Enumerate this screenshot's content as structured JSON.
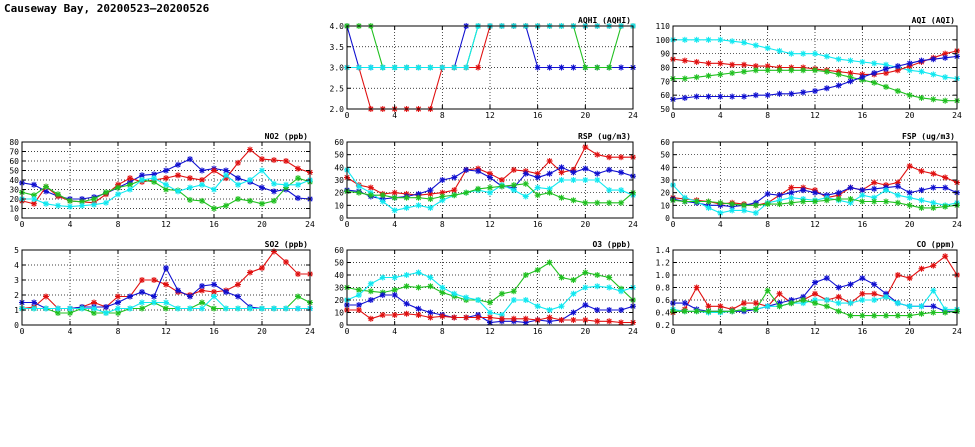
{
  "page": {
    "title": "Causeway Bay, 20200523–20200526"
  },
  "series_colors": {
    "blue": "#1010d0",
    "red": "#e01010",
    "green": "#20c020",
    "cyan": "#10e8f0"
  },
  "chart_data": [
    {
      "id": "aqhi",
      "type": "line",
      "title": "AQHI (AQHI)",
      "xlim": [
        0,
        24
      ],
      "xticks": [
        0,
        4,
        8,
        12,
        16,
        20,
        24
      ],
      "ylim": [
        2,
        4
      ],
      "yticks": [
        "2.0",
        "2.5",
        "3.0",
        "3.5",
        "4.0"
      ],
      "grid": true,
      "series": [
        {
          "color": "blue",
          "values": [
            4,
            3,
            3,
            3,
            3,
            3,
            3,
            3,
            3,
            3,
            4,
            4,
            4,
            4,
            4,
            4,
            3,
            3,
            3,
            3,
            3,
            3,
            3,
            3,
            3
          ]
        },
        {
          "color": "green",
          "values": [
            4,
            4,
            4,
            3,
            3,
            3,
            3,
            3,
            3,
            3,
            3,
            4,
            4,
            4,
            4,
            4,
            4,
            4,
            4,
            4,
            3,
            3,
            3,
            4,
            4
          ]
        },
        {
          "color": "red",
          "values": [
            3,
            3,
            2,
            2,
            2,
            2,
            2,
            2,
            3,
            3,
            3,
            3,
            4,
            4,
            4,
            4,
            4,
            4,
            4,
            4,
            4,
            4,
            4,
            4,
            4
          ]
        },
        {
          "color": "cyan",
          "values": [
            3,
            3,
            3,
            3,
            3,
            3,
            3,
            3,
            3,
            3,
            3,
            4,
            4,
            4,
            4,
            4,
            4,
            4,
            4,
            4,
            4,
            4,
            4,
            4,
            4
          ]
        }
      ]
    },
    {
      "id": "aqi",
      "type": "line",
      "title": "AQI (AQI)",
      "xlim": [
        0,
        24
      ],
      "xticks": [
        0,
        4,
        8,
        12,
        16,
        20,
        24
      ],
      "ylim": [
        50,
        110
      ],
      "yticks": [
        "50",
        "60",
        "70",
        "80",
        "90",
        "100",
        "110"
      ],
      "grid": true,
      "series": [
        {
          "color": "cyan",
          "values": [
            100,
            100,
            100,
            100,
            100,
            99,
            98,
            96,
            94,
            92,
            90,
            90,
            90,
            88,
            86,
            85,
            84,
            83,
            82,
            80,
            78,
            77,
            75,
            73,
            72
          ]
        },
        {
          "color": "red",
          "values": [
            86,
            85,
            84,
            83,
            83,
            82,
            82,
            81,
            81,
            80,
            80,
            80,
            79,
            78,
            77,
            76,
            75,
            75,
            76,
            78,
            81,
            84,
            87,
            90,
            92
          ]
        },
        {
          "color": "green",
          "values": [
            72,
            72,
            73,
            74,
            75,
            76,
            77,
            78,
            78,
            78,
            78,
            78,
            78,
            77,
            75,
            73,
            71,
            69,
            66,
            63,
            60,
            58,
            57,
            56,
            56
          ]
        },
        {
          "color": "blue",
          "values": [
            57,
            58,
            59,
            59,
            59,
            59,
            59,
            60,
            60,
            61,
            61,
            62,
            63,
            65,
            67,
            70,
            73,
            76,
            79,
            81,
            83,
            85,
            86,
            87,
            88
          ]
        }
      ]
    },
    {
      "id": "no2",
      "type": "line",
      "title": "NO2 (ppb)",
      "xlim": [
        0,
        24
      ],
      "xticks": [
        0,
        4,
        8,
        12,
        16,
        20,
        24
      ],
      "ylim": [
        0,
        80
      ],
      "yticks": [
        "0",
        "10",
        "20",
        "30",
        "40",
        "50",
        "60",
        "70",
        "80"
      ],
      "grid": true,
      "series": [
        {
          "color": "blue",
          "values": [
            37,
            35,
            28,
            23,
            20,
            20,
            22,
            26,
            32,
            38,
            45,
            46,
            50,
            56,
            62,
            50,
            52,
            50,
            42,
            38,
            32,
            28,
            30,
            21,
            20
          ]
        },
        {
          "color": "red",
          "values": [
            18,
            15,
            33,
            23,
            18,
            17,
            16,
            25,
            35,
            42,
            38,
            40,
            42,
            45,
            42,
            40,
            50,
            42,
            58,
            72,
            62,
            61,
            60,
            52,
            48
          ]
        },
        {
          "color": "green",
          "values": [
            27,
            24,
            33,
            25,
            18,
            17,
            20,
            27,
            32,
            35,
            40,
            38,
            30,
            29,
            19,
            18,
            10,
            13,
            20,
            18,
            15,
            18,
            32,
            42,
            38
          ]
        },
        {
          "color": "cyan",
          "values": [
            20,
            20,
            15,
            13,
            12,
            13,
            14,
            16,
            25,
            30,
            40,
            42,
            35,
            28,
            32,
            35,
            30,
            45,
            35,
            40,
            50,
            36,
            35,
            35,
            40
          ]
        }
      ]
    },
    {
      "id": "rsp",
      "type": "line",
      "title": "RSP (ug/m3)",
      "xlim": [
        0,
        24
      ],
      "xticks": [
        0,
        4,
        8,
        12,
        16,
        20,
        24
      ],
      "ylim": [
        0,
        60
      ],
      "yticks": [
        "0",
        "10",
        "20",
        "30",
        "40",
        "50",
        "60"
      ],
      "grid": true,
      "series": [
        {
          "color": "red",
          "values": [
            32,
            26,
            24,
            19,
            20,
            19,
            18,
            19,
            20,
            22,
            38,
            39,
            35,
            30,
            38,
            37,
            35,
            45,
            36,
            38,
            56,
            50,
            48,
            48,
            48
          ]
        },
        {
          "color": "blue",
          "values": [
            22,
            21,
            17,
            15,
            16,
            17,
            19,
            22,
            30,
            32,
            38,
            37,
            32,
            25,
            24,
            35,
            32,
            35,
            40,
            36,
            39,
            35,
            38,
            36,
            33
          ]
        },
        {
          "color": "cyan",
          "values": [
            38,
            25,
            20,
            13,
            6,
            8,
            10,
            8,
            14,
            18,
            20,
            22,
            20,
            26,
            22,
            17,
            24,
            23,
            30,
            30,
            30,
            30,
            22,
            22,
            18
          ]
        },
        {
          "color": "green",
          "values": [
            21,
            20,
            18,
            18,
            16,
            16,
            16,
            15,
            17,
            18,
            20,
            23,
            24,
            25,
            26,
            27,
            18,
            20,
            16,
            14,
            12,
            12,
            12,
            12,
            20
          ]
        }
      ]
    },
    {
      "id": "fsp",
      "type": "line",
      "title": "FSP (ug/m3)",
      "xlim": [
        0,
        24
      ],
      "xticks": [
        0,
        4,
        8,
        12,
        16,
        20,
        24
      ],
      "ylim": [
        0,
        60
      ],
      "yticks": [
        "0",
        "10",
        "20",
        "30",
        "40",
        "50",
        "60"
      ],
      "grid": true,
      "series": [
        {
          "color": "red",
          "values": [
            16,
            15,
            14,
            13,
            11,
            12,
            11,
            10,
            12,
            18,
            24,
            24,
            22,
            16,
            18,
            24,
            22,
            28,
            26,
            28,
            41,
            37,
            35,
            32,
            28
          ]
        },
        {
          "color": "blue",
          "values": [
            15,
            13,
            12,
            10,
            10,
            9,
            10,
            12,
            19,
            18,
            20,
            22,
            20,
            18,
            20,
            24,
            22,
            23,
            24,
            25,
            20,
            22,
            24,
            24,
            20
          ]
        },
        {
          "color": "cyan",
          "values": [
            26,
            16,
            13,
            8,
            4,
            6,
            6,
            4,
            12,
            14,
            16,
            15,
            14,
            16,
            14,
            12,
            18,
            16,
            22,
            18,
            16,
            14,
            12,
            10,
            12
          ]
        },
        {
          "color": "green",
          "values": [
            14,
            13,
            13,
            13,
            12,
            11,
            10,
            10,
            11,
            11,
            12,
            13,
            13,
            14,
            15,
            15,
            13,
            13,
            13,
            12,
            10,
            8,
            8,
            9,
            10
          ]
        }
      ]
    },
    {
      "id": "so2",
      "type": "line",
      "title": "SO2 (ppb)",
      "xlim": [
        0,
        24
      ],
      "xticks": [
        0,
        4,
        8,
        12,
        16,
        20,
        24
      ],
      "ylim": [
        0,
        5
      ],
      "yticks": [
        "0",
        "1",
        "2",
        "3",
        "4",
        "5"
      ],
      "grid": true,
      "series": [
        {
          "color": "red",
          "values": [
            1.1,
            1.2,
            1.9,
            1.1,
            1.1,
            1.2,
            1.5,
            1.2,
            1.9,
            1.9,
            3.0,
            3.0,
            2.7,
            2.2,
            2.0,
            2.3,
            2.2,
            2.3,
            2.7,
            3.5,
            3.8,
            4.9,
            4.2,
            3.4,
            3.4
          ]
        },
        {
          "color": "blue",
          "values": [
            1.5,
            1.5,
            1.1,
            1.1,
            1.1,
            1.2,
            1.2,
            1.2,
            1.5,
            1.9,
            2.2,
            1.9,
            3.8,
            2.3,
            1.9,
            2.6,
            2.7,
            2.2,
            1.9,
            1.2,
            1.1,
            1.1,
            1.1,
            1.1,
            1.1
          ]
        },
        {
          "color": "green",
          "values": [
            1.1,
            1.1,
            1.1,
            0.8,
            0.8,
            1.1,
            0.8,
            0.8,
            0.8,
            1.1,
            1.1,
            1.5,
            1.1,
            1.1,
            1.1,
            1.5,
            1.1,
            1.1,
            1.1,
            1.1,
            1.1,
            1.1,
            1.1,
            1.9,
            1.5
          ]
        },
        {
          "color": "cyan",
          "values": [
            1.1,
            1.1,
            1.1,
            1.1,
            1.1,
            1.1,
            1.1,
            0.8,
            1.1,
            1.1,
            1.5,
            1.5,
            1.5,
            1.1,
            1.1,
            1.1,
            1.9,
            1.1,
            1.1,
            1.1,
            1.1,
            1.1,
            1.1,
            1.1,
            1.1
          ]
        }
      ]
    },
    {
      "id": "o3",
      "type": "line",
      "title": "O3 (ppb)",
      "xlim": [
        0,
        24
      ],
      "xticks": [
        0,
        4,
        8,
        12,
        16,
        20,
        24
      ],
      "ylim": [
        0,
        60
      ],
      "yticks": [
        "0",
        "10",
        "20",
        "30",
        "40",
        "50",
        "60"
      ],
      "grid": true,
      "series": [
        {
          "color": "green",
          "values": [
            30,
            28,
            27,
            26,
            28,
            31,
            30,
            31,
            26,
            23,
            20,
            20,
            18,
            25,
            27,
            40,
            44,
            50,
            38,
            36,
            42,
            40,
            38,
            29,
            20
          ]
        },
        {
          "color": "cyan",
          "values": [
            20,
            24,
            33,
            38,
            38,
            40,
            42,
            38,
            30,
            25,
            22,
            20,
            10,
            8,
            20,
            20,
            15,
            12,
            15,
            25,
            30,
            31,
            30,
            27,
            30
          ]
        },
        {
          "color": "blue",
          "values": [
            16,
            16,
            20,
            24,
            24,
            17,
            13,
            10,
            8,
            6,
            6,
            8,
            2,
            3,
            3,
            2,
            4,
            3,
            4,
            10,
            16,
            12,
            12,
            12,
            15
          ]
        },
        {
          "color": "red",
          "values": [
            12,
            12,
            5,
            8,
            8,
            9,
            8,
            6,
            7,
            6,
            6,
            6,
            6,
            5,
            5,
            5,
            4,
            6,
            4,
            4,
            4,
            3,
            3,
            2,
            2
          ]
        }
      ]
    },
    {
      "id": "co",
      "type": "line",
      "title": "CO (ppm)",
      "xlim": [
        0,
        24
      ],
      "xticks": [
        0,
        4,
        8,
        12,
        16,
        20,
        24
      ],
      "ylim": [
        0.2,
        1.4
      ],
      "yticks": [
        "0.2",
        "0.4",
        "0.6",
        "0.8",
        "1.0",
        "1.2",
        "1.4"
      ],
      "grid": true,
      "series": [
        {
          "color": "red",
          "values": [
            0.4,
            0.45,
            0.8,
            0.5,
            0.5,
            0.45,
            0.55,
            0.55,
            0.5,
            0.7,
            0.55,
            0.6,
            0.7,
            0.6,
            0.65,
            0.55,
            0.7,
            0.7,
            0.65,
            1.0,
            0.95,
            1.1,
            1.15,
            1.3,
            1.0
          ]
        },
        {
          "color": "blue",
          "values": [
            0.55,
            0.55,
            0.45,
            0.42,
            0.42,
            0.42,
            0.42,
            0.45,
            0.5,
            0.55,
            0.6,
            0.65,
            0.88,
            0.95,
            0.8,
            0.85,
            0.95,
            0.85,
            0.7,
            0.55,
            0.5,
            0.5,
            0.5,
            0.42,
            0.42
          ]
        },
        {
          "color": "cyan",
          "values": [
            0.45,
            0.42,
            0.42,
            0.4,
            0.4,
            0.42,
            0.45,
            0.45,
            0.5,
            0.5,
            0.55,
            0.55,
            0.6,
            0.6,
            0.55,
            0.55,
            0.6,
            0.6,
            0.65,
            0.55,
            0.5,
            0.5,
            0.75,
            0.45,
            0.45
          ]
        },
        {
          "color": "green",
          "values": [
            0.42,
            0.42,
            0.42,
            0.42,
            0.42,
            0.42,
            0.45,
            0.45,
            0.75,
            0.5,
            0.55,
            0.6,
            0.55,
            0.5,
            0.42,
            0.35,
            0.35,
            0.35,
            0.35,
            0.35,
            0.35,
            0.38,
            0.4,
            0.4,
            0.42
          ]
        }
      ]
    }
  ]
}
